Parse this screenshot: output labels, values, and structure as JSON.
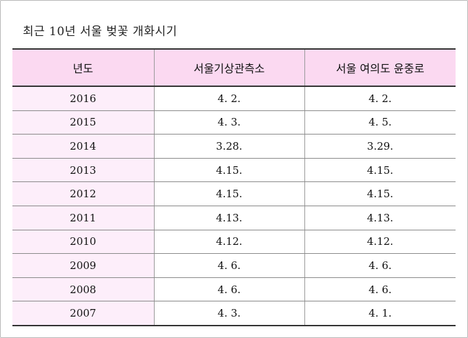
{
  "title": "최근 10년 서울 벚꽃 개화시기",
  "table": {
    "headers": [
      "년도",
      "서울기상관측소",
      "서울 여의도 윤중로"
    ],
    "rows": [
      [
        "2016",
        "4. 2.",
        "4. 2."
      ],
      [
        "2015",
        "4. 3.",
        "4. 5."
      ],
      [
        "2014",
        "3.28.",
        "3.29."
      ],
      [
        "2013",
        "4.15.",
        "4.15."
      ],
      [
        "2012",
        "4.15.",
        "4.15."
      ],
      [
        "2011",
        "4.13.",
        "4.13."
      ],
      [
        "2010",
        "4.12.",
        "4.12."
      ],
      [
        "2009",
        "4. 6.",
        "4. 6."
      ],
      [
        "2008",
        "4. 6.",
        "4. 6."
      ],
      [
        "2007",
        "4. 3.",
        "4. 1."
      ]
    ]
  }
}
